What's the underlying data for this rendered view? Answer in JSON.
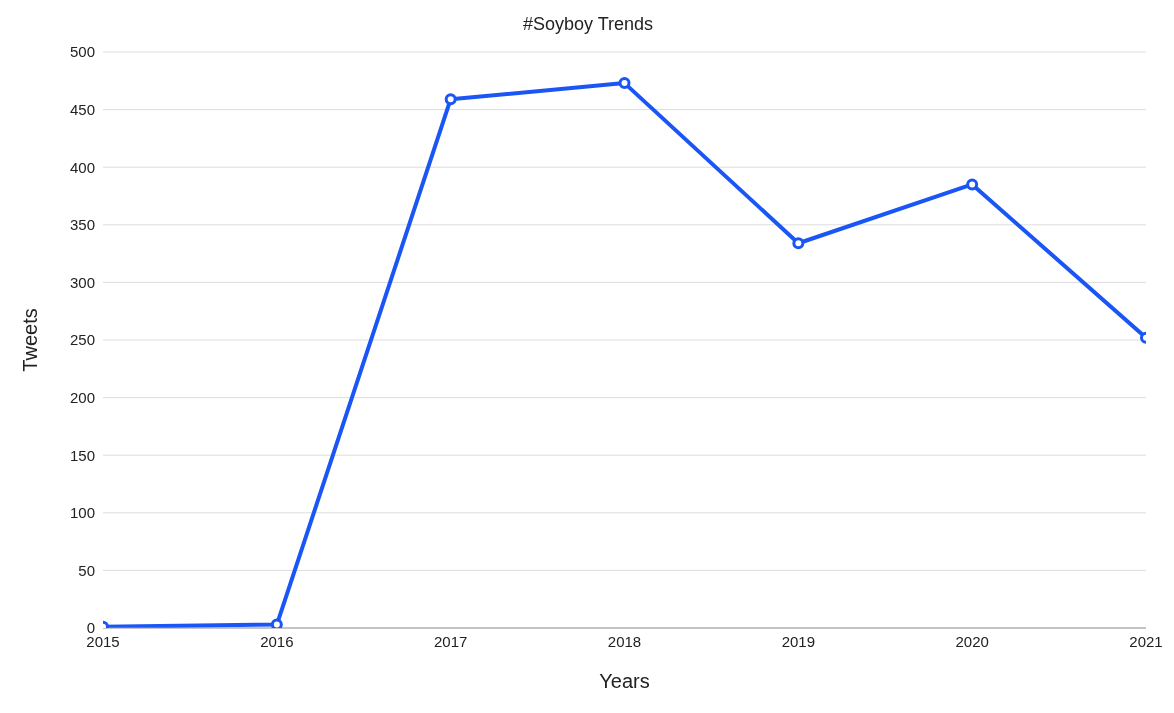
{
  "chart_data": {
    "type": "line",
    "title": "#Soyboy Trends",
    "xlabel": "Years",
    "ylabel": "Tweets",
    "x": [
      2015,
      2016,
      2017,
      2018,
      2019,
      2020,
      2021
    ],
    "series": [
      {
        "color": "#1a56f5",
        "values": [
          1,
          3,
          459,
          473,
          334,
          385,
          252
        ]
      }
    ],
    "xlim": [
      2015,
      2021
    ],
    "xticks": [
      2015,
      2016,
      2017,
      2018,
      2019,
      2020,
      2021
    ],
    "ylim": [
      0,
      500
    ],
    "yticks": [
      0,
      50,
      100,
      150,
      200,
      250,
      300,
      350,
      400,
      450,
      500
    ],
    "grid": "y",
    "marker": "circle",
    "line_style": "solid"
  }
}
